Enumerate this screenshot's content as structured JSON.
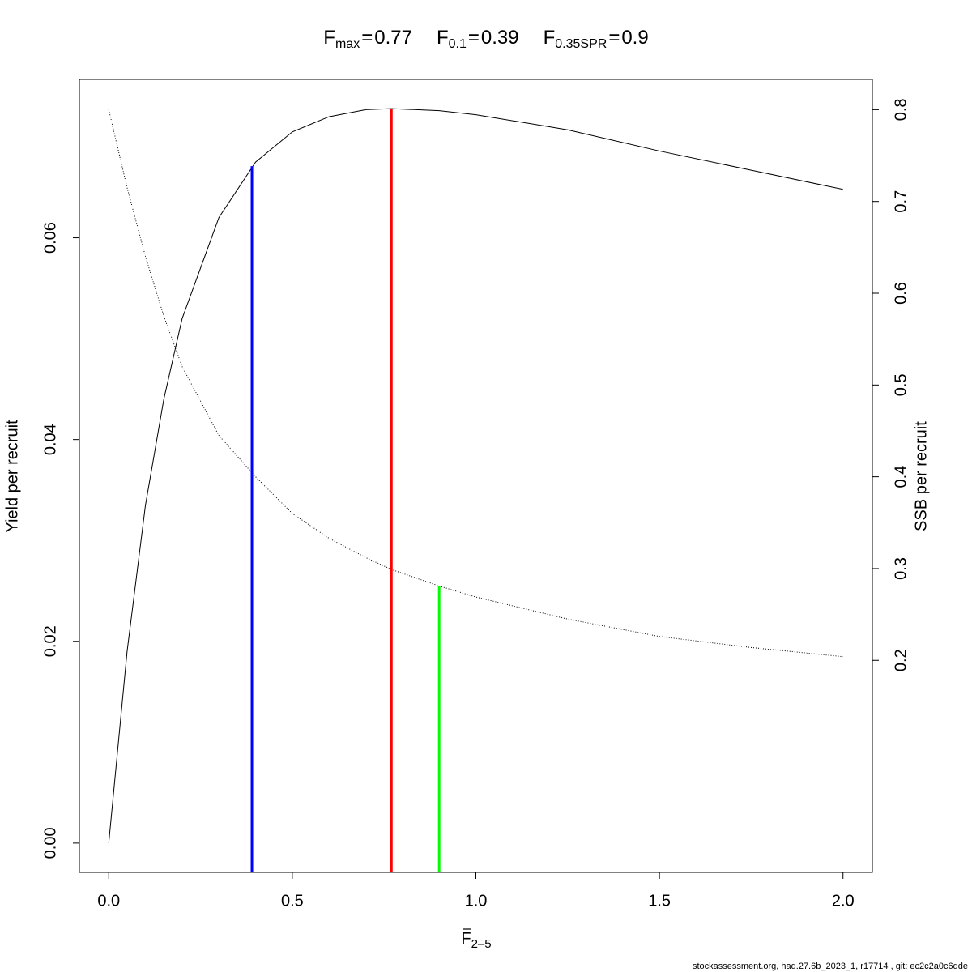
{
  "chart_data": {
    "type": "line",
    "title_operator": "=",
    "reference_lines": [
      {
        "symbol": "F",
        "subscript": "max",
        "value": 0.77,
        "top": 0.0728,
        "axis": "y",
        "color": "#ff0000"
      },
      {
        "symbol": "F",
        "subscript": "0.1",
        "value": 0.39,
        "top": 0.0671,
        "axis": "y",
        "color": "#0000ff"
      },
      {
        "symbol": "F",
        "subscript": "0.35SPR",
        "value": 0.9,
        "top": 0.281,
        "axis": "y2",
        "color": "#00ff00"
      }
    ],
    "x_label": {
      "symbol": "F",
      "subscript": "2–5"
    },
    "y_label": "Yield per recruit",
    "y2_label": "SSB per recruit",
    "x": [
      0,
      0.05,
      0.1,
      0.15,
      0.2,
      0.3,
      0.4,
      0.5,
      0.6,
      0.7,
      0.77,
      0.9,
      1.0,
      1.25,
      1.5,
      1.75,
      2.0
    ],
    "series": [
      {
        "color": "#000000",
        "line_style": "solid",
        "axis": "y",
        "values": [
          0,
          0.019,
          0.0335,
          0.044,
          0.052,
          0.062,
          0.0675,
          0.0705,
          0.072,
          0.0727,
          0.0728,
          0.0726,
          0.0722,
          0.0707,
          0.0686,
          0.0667,
          0.0648
        ]
      },
      {
        "color": "#000000",
        "line_style": "dotted",
        "axis": "y2",
        "values": [
          0.8,
          0.715,
          0.64,
          0.575,
          0.52,
          0.445,
          0.4,
          0.36,
          0.333,
          0.312,
          0.299,
          0.281,
          0.269,
          0.245,
          0.226,
          0.214,
          0.204
        ]
      }
    ],
    "xlim": [
      -0.08,
      2.08
    ],
    "xticks": [
      {
        "value": 0,
        "label": "0.0"
      },
      0.5,
      {
        "value": 1,
        "label": "1.0"
      },
      1.5,
      {
        "value": 2,
        "label": "2.0"
      }
    ],
    "ylim": [
      -0.0029,
      0.0757
    ],
    "yticks": [
      {
        "value": 0,
        "label": "0.00"
      },
      {
        "value": 0.02,
        "label": "0.02"
      },
      {
        "value": 0.04,
        "label": "0.04"
      },
      {
        "value": 0.06,
        "label": "0.06"
      }
    ],
    "y2lim": [
      -0.031,
      0.833
    ],
    "y2ticks": [
      0.2,
      0.3,
      0.4,
      0.5,
      0.6,
      0.7,
      0.8
    ],
    "footer": "stockassessment.org, had.27.6b_2023_1, r17714 , git: ec2c2a0c6dde"
  }
}
